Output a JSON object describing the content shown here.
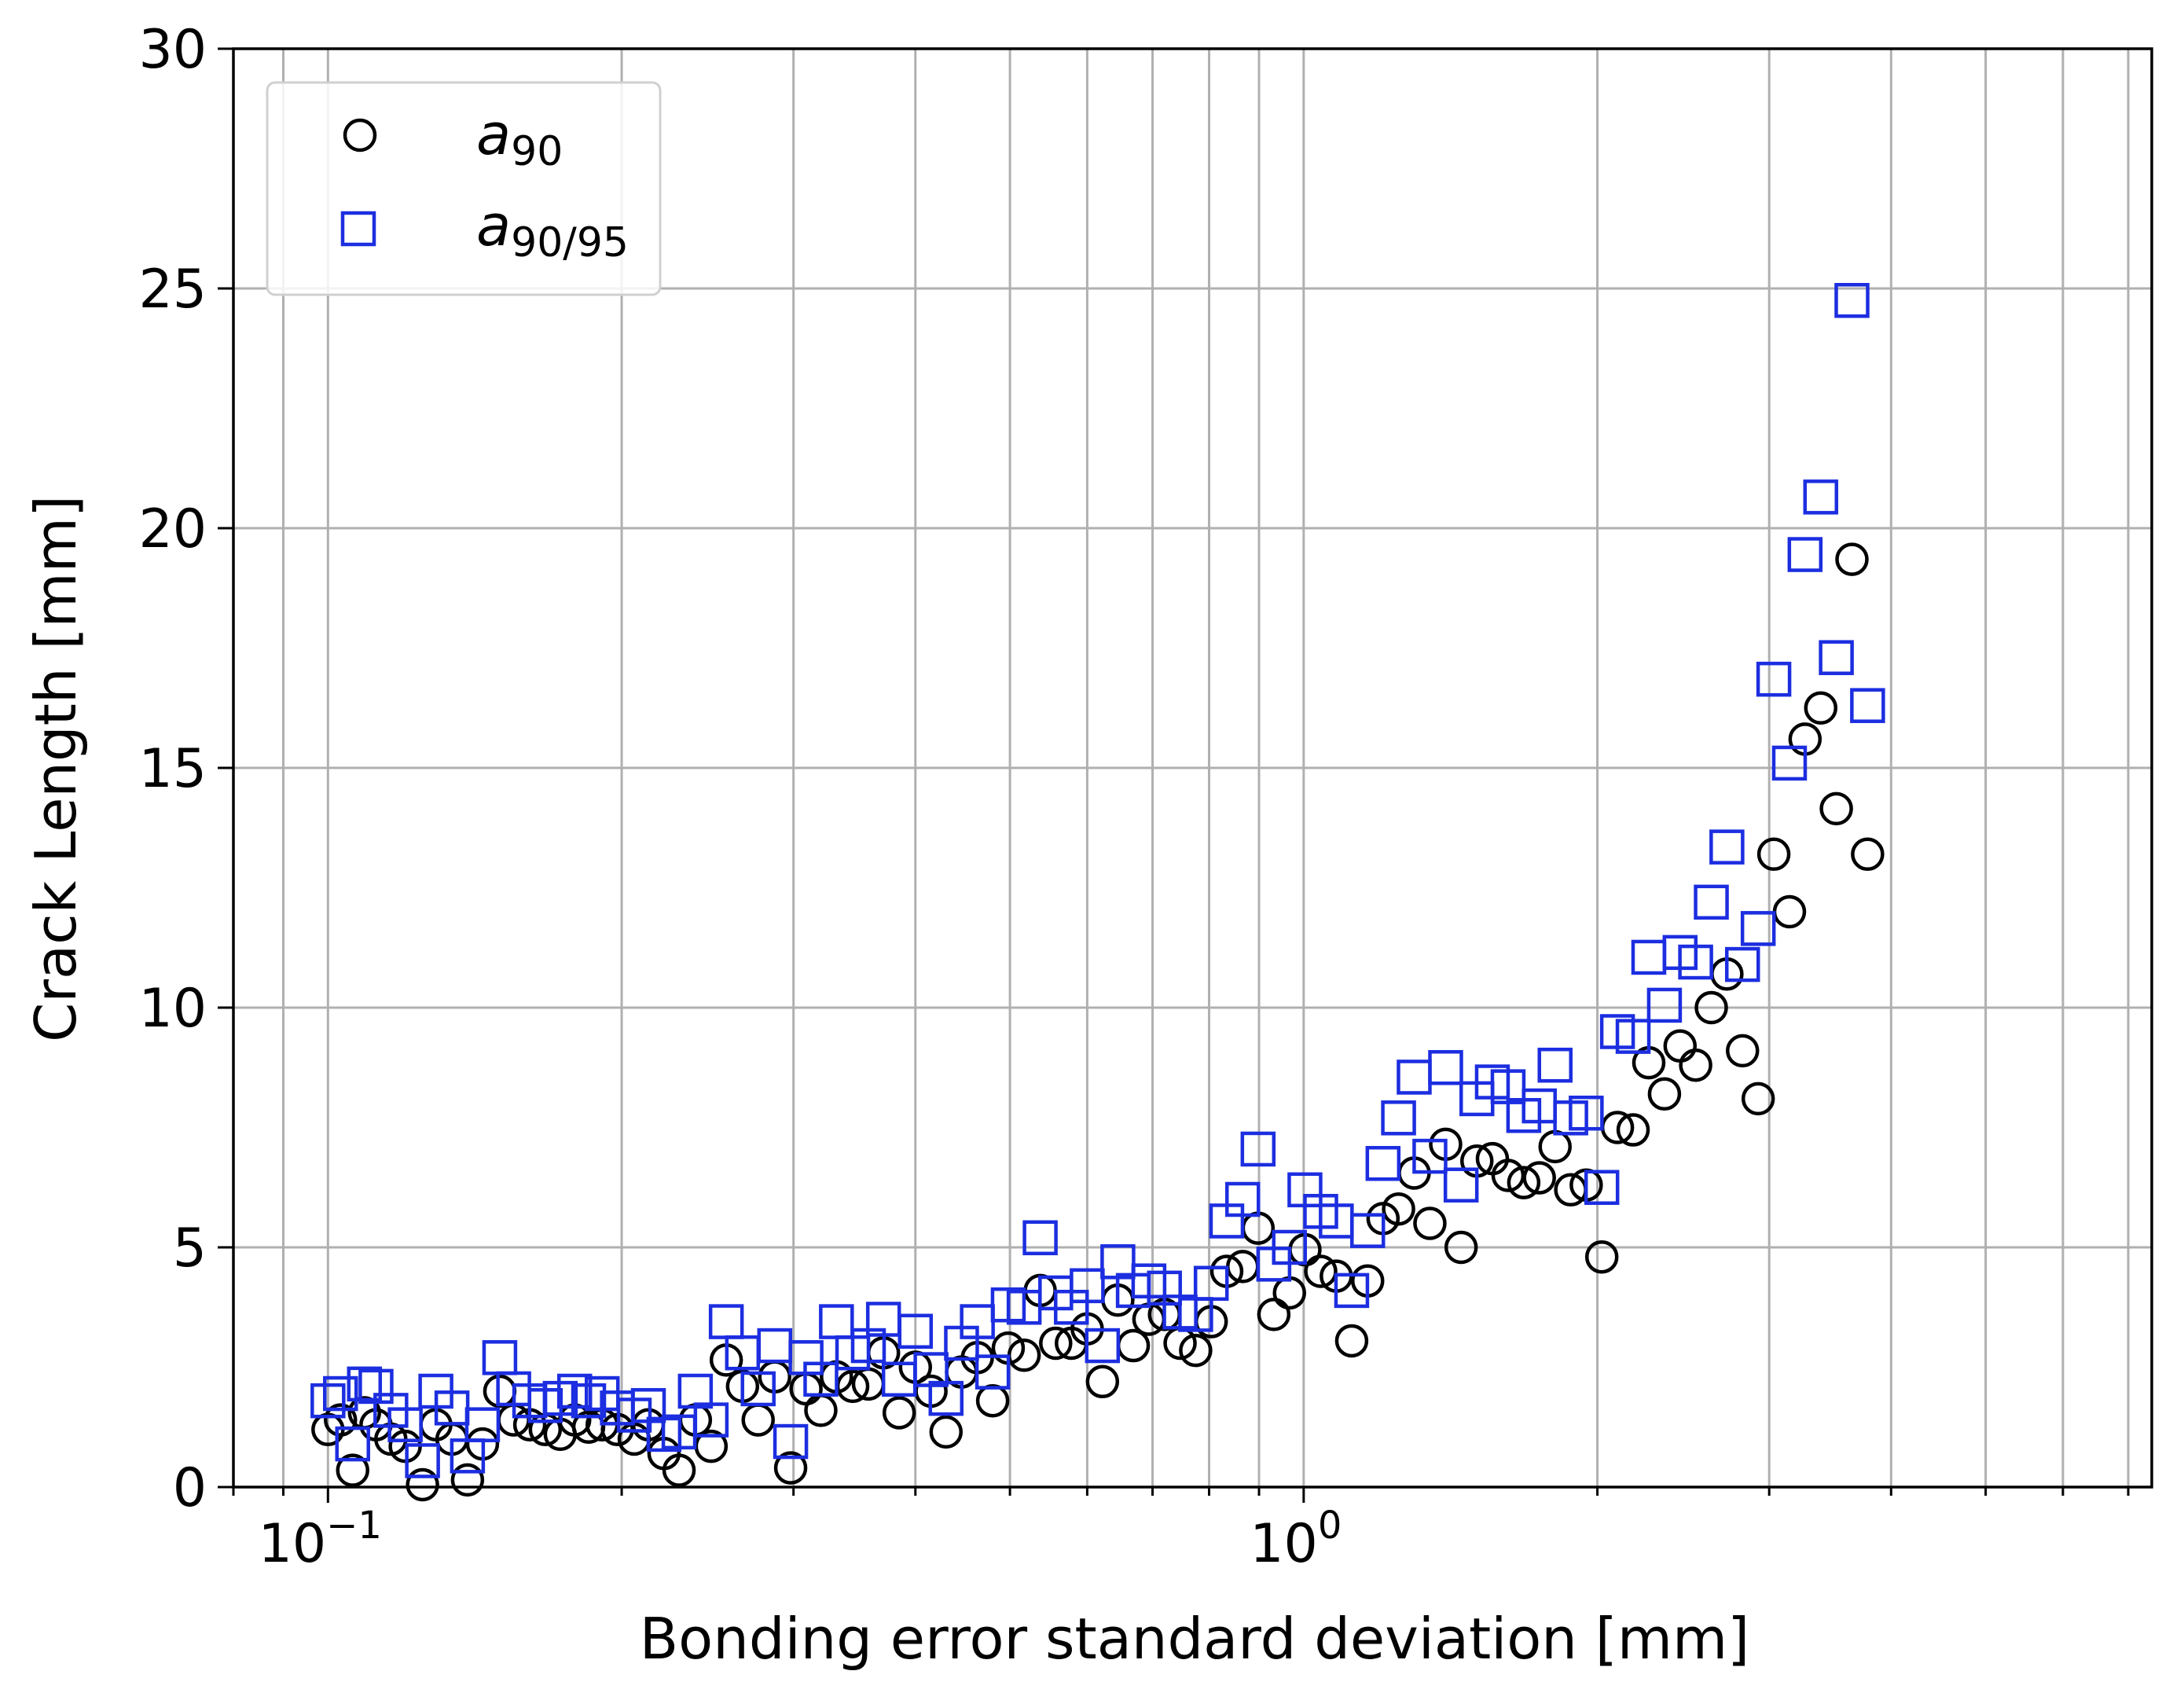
{
  "chart_data": {
    "type": "scatter",
    "xlabel": "Bonding error standard deviation [mm]",
    "ylabel": "Crack Length [mm]",
    "xscale": "log",
    "xlim": [
      0.08,
      7.4
    ],
    "ylim": [
      0,
      30
    ],
    "grid": true,
    "legend_position": "top-left",
    "x_ticks": [
      {
        "value": 0.1,
        "base": "10",
        "exp": "−1"
      },
      {
        "value": 1,
        "base": "10",
        "exp": "0"
      }
    ],
    "y_ticks": [
      {
        "value": 0,
        "label": "0"
      },
      {
        "value": 5,
        "label": "5"
      },
      {
        "value": 10,
        "label": "10"
      },
      {
        "value": 15,
        "label": "15"
      },
      {
        "value": 20,
        "label": "20"
      },
      {
        "value": 25,
        "label": "25"
      },
      {
        "value": 30,
        "label": "30"
      }
    ],
    "series": [
      {
        "name_main": "a",
        "name_sub": "90",
        "marker": "circle",
        "color": "#000000",
        "points": [
          [
            0.1,
            1.2
          ],
          [
            0.103,
            1.4
          ],
          [
            0.106,
            0.35
          ],
          [
            0.109,
            1.55
          ],
          [
            0.112,
            1.3
          ],
          [
            0.116,
            1.0
          ],
          [
            0.12,
            0.85
          ],
          [
            0.125,
            0.05
          ],
          [
            0.129,
            1.3
          ],
          [
            0.134,
            1.0
          ],
          [
            0.139,
            0.15
          ],
          [
            0.144,
            0.9
          ],
          [
            0.15,
            2.0
          ],
          [
            0.155,
            1.4
          ],
          [
            0.161,
            1.3
          ],
          [
            0.167,
            1.2
          ],
          [
            0.173,
            1.1
          ],
          [
            0.179,
            1.4
          ],
          [
            0.185,
            1.25
          ],
          [
            0.191,
            1.3
          ],
          [
            0.198,
            1.2
          ],
          [
            0.206,
            1.0
          ],
          [
            0.213,
            1.3
          ],
          [
            0.221,
            0.7
          ],
          [
            0.229,
            0.35
          ],
          [
            0.238,
            1.4
          ],
          [
            0.247,
            0.85
          ],
          [
            0.256,
            2.65
          ],
          [
            0.266,
            2.1
          ],
          [
            0.276,
            1.4
          ],
          [
            0.287,
            2.3
          ],
          [
            0.298,
            0.4
          ],
          [
            0.309,
            2.05
          ],
          [
            0.32,
            1.6
          ],
          [
            0.332,
            2.3
          ],
          [
            0.345,
            2.1
          ],
          [
            0.358,
            2.15
          ],
          [
            0.371,
            2.8
          ],
          [
            0.385,
            1.55
          ],
          [
            0.4,
            2.5
          ],
          [
            0.415,
            2.0
          ],
          [
            0.43,
            1.15
          ],
          [
            0.446,
            2.4
          ],
          [
            0.463,
            2.7
          ],
          [
            0.48,
            1.8
          ],
          [
            0.498,
            2.9
          ],
          [
            0.517,
            2.75
          ],
          [
            0.537,
            4.1
          ],
          [
            0.557,
            3.0
          ],
          [
            0.578,
            3.0
          ],
          [
            0.6,
            3.3
          ],
          [
            0.622,
            2.2
          ],
          [
            0.645,
            3.9
          ],
          [
            0.669,
            2.95
          ],
          [
            0.694,
            3.5
          ],
          [
            0.72,
            3.6
          ],
          [
            0.747,
            3.0
          ],
          [
            0.775,
            2.85
          ],
          [
            0.804,
            3.45
          ],
          [
            0.834,
            4.5
          ],
          [
            0.866,
            4.6
          ],
          [
            0.898,
            5.4
          ],
          [
            0.932,
            3.6
          ],
          [
            0.967,
            4.05
          ],
          [
            1.003,
            4.95
          ],
          [
            1.041,
            4.5
          ],
          [
            1.08,
            4.4
          ],
          [
            1.12,
            3.05
          ],
          [
            1.163,
            4.3
          ],
          [
            1.206,
            5.6
          ],
          [
            1.251,
            5.8
          ],
          [
            1.298,
            6.55
          ],
          [
            1.347,
            5.5
          ],
          [
            1.398,
            7.15
          ],
          [
            1.45,
            5.0
          ],
          [
            1.505,
            6.8
          ],
          [
            1.561,
            6.85
          ],
          [
            1.62,
            6.5
          ],
          [
            1.681,
            6.35
          ],
          [
            1.744,
            6.45
          ],
          [
            1.81,
            7.1
          ],
          [
            1.878,
            6.2
          ],
          [
            1.948,
            6.3
          ],
          [
            2.021,
            4.8
          ],
          [
            2.097,
            7.5
          ],
          [
            2.176,
            7.45
          ],
          [
            2.258,
            8.85
          ],
          [
            2.343,
            8.2
          ],
          [
            2.431,
            9.2
          ],
          [
            2.522,
            8.8
          ],
          [
            2.617,
            10.0
          ],
          [
            2.715,
            10.7
          ],
          [
            2.817,
            9.1
          ],
          [
            2.923,
            8.1
          ],
          [
            3.033,
            13.2
          ],
          [
            3.147,
            12.0
          ],
          [
            3.265,
            15.6
          ],
          [
            3.388,
            16.25
          ],
          [
            3.515,
            14.15
          ],
          [
            3.647,
            19.35
          ],
          [
            3.784,
            13.2
          ]
        ]
      },
      {
        "name_main": "a",
        "name_sub": "90/95",
        "marker": "square",
        "color": "#1c2ee0",
        "points": [
          [
            0.1,
            1.8
          ],
          [
            0.103,
            1.95
          ],
          [
            0.106,
            0.9
          ],
          [
            0.109,
            2.15
          ],
          [
            0.112,
            2.1
          ],
          [
            0.116,
            1.6
          ],
          [
            0.12,
            1.3
          ],
          [
            0.125,
            0.55
          ],
          [
            0.129,
            2.0
          ],
          [
            0.134,
            1.65
          ],
          [
            0.139,
            0.65
          ],
          [
            0.144,
            1.3
          ],
          [
            0.15,
            2.7
          ],
          [
            0.155,
            2.05
          ],
          [
            0.161,
            1.8
          ],
          [
            0.167,
            1.7
          ],
          [
            0.173,
            1.85
          ],
          [
            0.179,
            2.0
          ],
          [
            0.185,
            1.8
          ],
          [
            0.191,
            1.95
          ],
          [
            0.198,
            1.65
          ],
          [
            0.206,
            1.5
          ],
          [
            0.213,
            1.7
          ],
          [
            0.221,
            1.1
          ],
          [
            0.229,
            1.15
          ],
          [
            0.238,
            2.0
          ],
          [
            0.247,
            1.4
          ],
          [
            0.256,
            3.45
          ],
          [
            0.266,
            2.8
          ],
          [
            0.276,
            2.05
          ],
          [
            0.287,
            2.95
          ],
          [
            0.298,
            0.95
          ],
          [
            0.309,
            2.7
          ],
          [
            0.32,
            2.25
          ],
          [
            0.332,
            3.45
          ],
          [
            0.345,
            2.8
          ],
          [
            0.358,
            2.95
          ],
          [
            0.371,
            3.5
          ],
          [
            0.385,
            2.25
          ],
          [
            0.4,
            3.25
          ],
          [
            0.415,
            2.45
          ],
          [
            0.43,
            1.85
          ],
          [
            0.446,
            3.0
          ],
          [
            0.463,
            3.45
          ],
          [
            0.48,
            2.4
          ],
          [
            0.498,
            3.8
          ],
          [
            0.517,
            3.75
          ],
          [
            0.537,
            5.2
          ],
          [
            0.557,
            4.05
          ],
          [
            0.578,
            3.75
          ],
          [
            0.6,
            4.2
          ],
          [
            0.622,
            2.95
          ],
          [
            0.645,
            4.7
          ],
          [
            0.669,
            4.1
          ],
          [
            0.694,
            4.3
          ],
          [
            0.72,
            4.15
          ],
          [
            0.747,
            3.65
          ],
          [
            0.775,
            3.6
          ],
          [
            0.804,
            4.25
          ],
          [
            0.834,
            5.55
          ],
          [
            0.866,
            6.0
          ],
          [
            0.898,
            7.05
          ],
          [
            0.932,
            4.65
          ],
          [
            0.967,
            5.0
          ],
          [
            1.003,
            6.2
          ],
          [
            1.041,
            5.75
          ],
          [
            1.08,
            5.55
          ],
          [
            1.12,
            4.1
          ],
          [
            1.163,
            5.35
          ],
          [
            1.206,
            6.75
          ],
          [
            1.251,
            7.7
          ],
          [
            1.298,
            8.55
          ],
          [
            1.347,
            6.9
          ],
          [
            1.398,
            8.75
          ],
          [
            1.45,
            6.3
          ],
          [
            1.505,
            8.1
          ],
          [
            1.561,
            8.45
          ],
          [
            1.62,
            8.35
          ],
          [
            1.681,
            7.75
          ],
          [
            1.744,
            7.95
          ],
          [
            1.81,
            8.8
          ],
          [
            1.878,
            7.7
          ],
          [
            1.948,
            7.8
          ],
          [
            2.021,
            6.25
          ],
          [
            2.097,
            9.5
          ],
          [
            2.176,
            9.4
          ],
          [
            2.258,
            11.05
          ],
          [
            2.343,
            10.05
          ],
          [
            2.431,
            11.15
          ],
          [
            2.522,
            10.95
          ],
          [
            2.617,
            12.2
          ],
          [
            2.715,
            13.35
          ],
          [
            2.817,
            10.9
          ],
          [
            2.923,
            11.65
          ],
          [
            3.033,
            16.85
          ],
          [
            3.147,
            15.1
          ],
          [
            3.265,
            19.45
          ],
          [
            3.388,
            20.65
          ],
          [
            3.515,
            17.3
          ],
          [
            3.647,
            24.75
          ],
          [
            3.784,
            16.3
          ]
        ]
      }
    ]
  }
}
